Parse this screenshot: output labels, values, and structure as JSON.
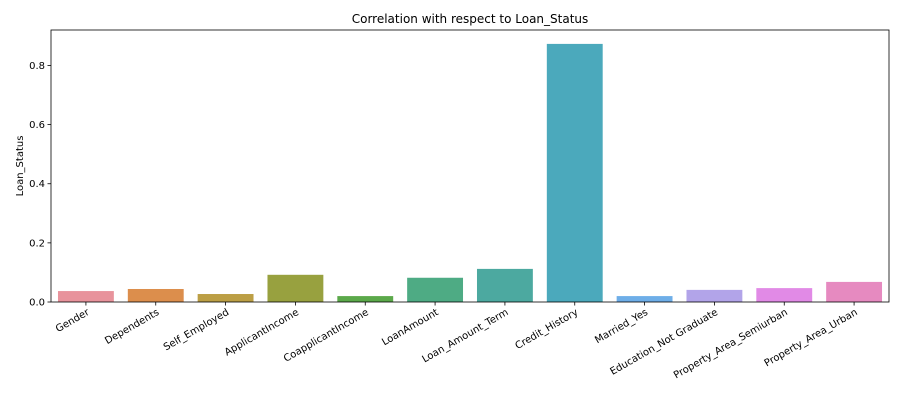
{
  "chart_data": {
    "type": "bar",
    "title": "Correlation with respect to Loan_Status",
    "xlabel": "",
    "ylabel": "Loan_Status",
    "ylim": [
      0,
      0.92
    ],
    "yticks": [
      0.0,
      0.2,
      0.4,
      0.6,
      0.8
    ],
    "ytick_labels": [
      "0.0",
      "0.2",
      "0.4",
      "0.6",
      "0.8"
    ],
    "grid": false,
    "categories": [
      "Gender",
      "Dependents",
      "Self_Employed",
      "ApplicantIncome",
      "CoapplicantIncome",
      "LoanAmount",
      "Loan_Amount_Term",
      "Credit_History",
      "Married_Yes",
      "Education_Not Graduate",
      "Property_Area_Semiurban",
      "Property_Area_Urban"
    ],
    "values": [
      0.037,
      0.044,
      0.027,
      0.092,
      0.02,
      0.082,
      0.112,
      0.873,
      0.02,
      0.041,
      0.047,
      0.068
    ],
    "colors": [
      "#e8939c",
      "#dc8e4c",
      "#bc9f45",
      "#98a13f",
      "#5ba94a",
      "#4eab84",
      "#4ca9a0",
      "#4ba9bc",
      "#6eaee8",
      "#b2a4e9",
      "#e18ae6",
      "#e68ac0"
    ]
  }
}
